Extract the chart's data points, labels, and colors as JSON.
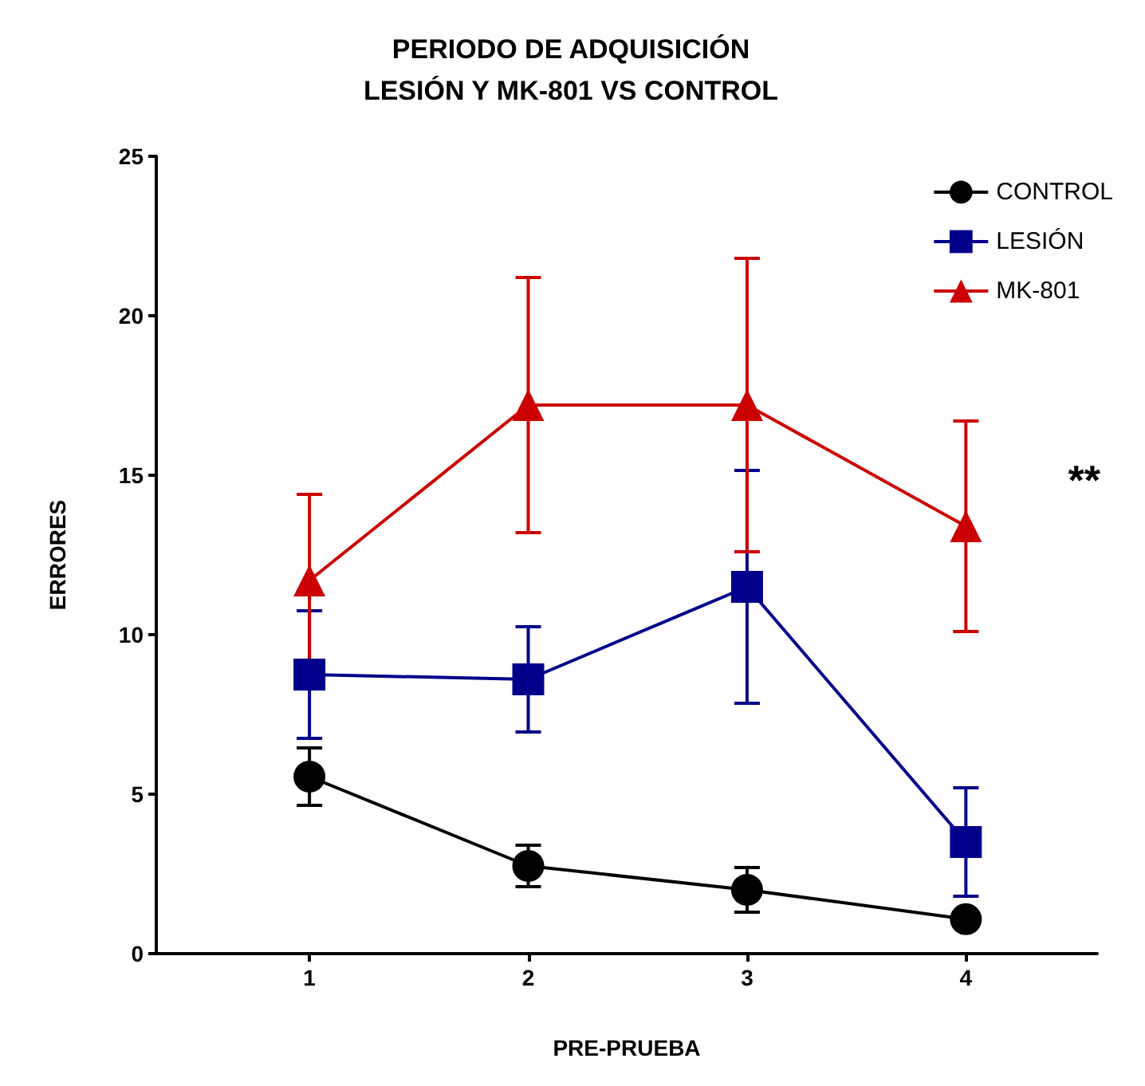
{
  "chart_data": {
    "type": "line",
    "title": "PERIODO DE ADQUISICIÓN\nLESIÓN Y MK-801 VS CONTROL",
    "xlabel": "PRE-PRUEBA",
    "ylabel": "ERRORES",
    "x": [
      1,
      2,
      3,
      4
    ],
    "xlim": [
      0.3,
      4.6
    ],
    "xticks": [
      1,
      2,
      3,
      4
    ],
    "ylim": [
      0,
      25
    ],
    "yticks": [
      0,
      5,
      10,
      15,
      20,
      25
    ],
    "grid": false,
    "legend": "top right",
    "series": [
      {
        "name": "CONTROL",
        "color": "#000000",
        "marker": "circle",
        "values": [
          5.55,
          2.75,
          2.0,
          1.08
        ],
        "errors": [
          0.9,
          0.65,
          0.7,
          0.2
        ]
      },
      {
        "name": "LESIÓN",
        "color": "#00008b",
        "marker": "square",
        "values": [
          8.75,
          8.6,
          11.5,
          3.5
        ],
        "errors": [
          2.0,
          1.65,
          3.65,
          1.7
        ]
      },
      {
        "name": "MK-801",
        "color": "#cc0000",
        "marker": "triangle",
        "values": [
          11.7,
          17.2,
          17.2,
          13.4
        ],
        "errors": [
          2.7,
          4.0,
          4.6,
          3.3
        ]
      }
    ],
    "annotations": [
      "**"
    ]
  }
}
